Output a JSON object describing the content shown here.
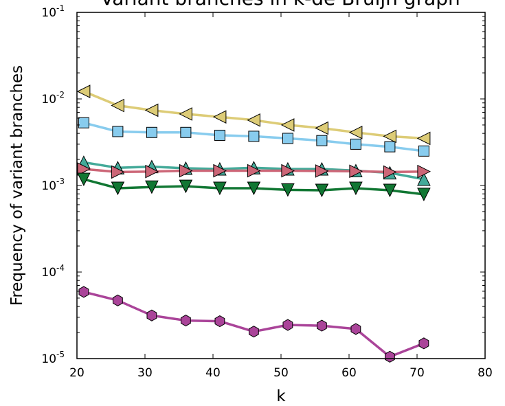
{
  "chart_data": {
    "type": "line",
    "title": "Variant branches in k-de Bruijn graph",
    "xlabel": "k",
    "ylabel": "Frequency of variant branches",
    "xlim": [
      20,
      80
    ],
    "ylim": [
      1e-05,
      0.1
    ],
    "yscale": "log",
    "grid": false,
    "x_ticks": [
      "20",
      "30",
      "40",
      "50",
      "60",
      "70",
      "80"
    ],
    "y_ticks": [
      {
        "base": "10",
        "exp": "-5"
      },
      {
        "base": "10",
        "exp": "-4"
      },
      {
        "base": "10",
        "exp": "-3"
      },
      {
        "base": "10",
        "exp": "-2"
      },
      {
        "base": "10",
        "exp": "-1"
      }
    ],
    "x": [
      21,
      26,
      31,
      36,
      41,
      46,
      51,
      56,
      61,
      66,
      71
    ],
    "series": [
      {
        "color": "#ddcc77",
        "marker": "triangle-left",
        "values": [
          0.0122,
          0.0084,
          0.0074,
          0.0067,
          0.0062,
          0.0057,
          0.005,
          0.0046,
          0.0041,
          0.0037,
          0.0035
        ]
      },
      {
        "color": "#88ccee",
        "marker": "square",
        "values": [
          0.0053,
          0.0042,
          0.0041,
          0.0041,
          0.0038,
          0.0037,
          0.0035,
          0.0033,
          0.003,
          0.0028,
          0.0025
        ]
      },
      {
        "color": "#44aa99",
        "marker": "triangle-up",
        "values": [
          0.00185,
          0.0016,
          0.00165,
          0.00158,
          0.00155,
          0.0016,
          0.00155,
          0.00155,
          0.00148,
          0.0014,
          0.00118
        ]
      },
      {
        "color": "#cc6677",
        "marker": "triangle-right",
        "values": [
          0.00155,
          0.00143,
          0.00145,
          0.00148,
          0.00148,
          0.00148,
          0.00148,
          0.00147,
          0.00146,
          0.00143,
          0.00145
        ]
      },
      {
        "color": "#117733",
        "marker": "triangle-down",
        "values": [
          0.00118,
          0.00093,
          0.00096,
          0.00098,
          0.00093,
          0.00093,
          0.00089,
          0.00088,
          0.00093,
          0.00088,
          0.00079
        ]
      },
      {
        "color": "#aa4499",
        "marker": "hexagon",
        "values": [
          5.9e-05,
          4.7e-05,
          3.15e-05,
          2.75e-05,
          2.7e-05,
          2.05e-05,
          2.45e-05,
          2.4e-05,
          2.2e-05,
          1.05e-05,
          1.5e-05
        ]
      }
    ]
  }
}
